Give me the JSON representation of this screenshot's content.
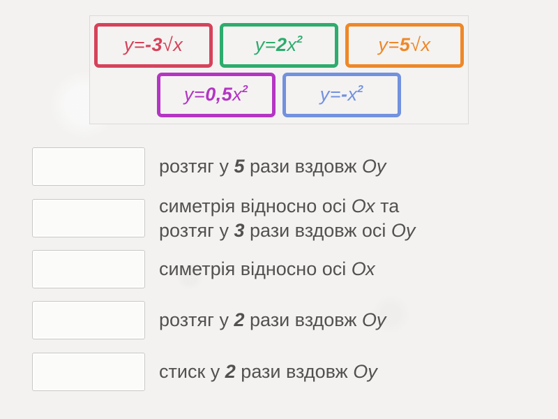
{
  "page": {
    "background": "#f3f2f1",
    "text_color": "#525150"
  },
  "tile_bank": {
    "tiles": [
      {
        "label": "y=-3√x",
        "pre": "y=",
        "coef": "-3",
        "rest": "√x",
        "sup": "",
        "color": "#d6425a"
      },
      {
        "label": "y=2x²",
        "pre": "y=",
        "coef": "2",
        "rest": "x",
        "sup": "2",
        "color": "#2dac6d"
      },
      {
        "label": "y=5√x",
        "pre": "y=",
        "coef": "5",
        "rest": "√x",
        "sup": "",
        "color": "#ee8828"
      },
      {
        "label": "y=0,5x²",
        "pre": "y=",
        "coef": "0,5",
        "rest": "x",
        "sup": "2",
        "color": "#b435c3"
      },
      {
        "label": "y=-x²",
        "pre": "y=",
        "coef": "-",
        "rest": "x",
        "sup": "2",
        "color": "#7291de"
      }
    ]
  },
  "match_rows": [
    {
      "text": "розтяг у 5 рази вздовж Оу",
      "lines": [
        [
          {
            "t": "розтяг у "
          },
          {
            "t": "5",
            "s": "b"
          },
          {
            "t": " рази вздовж "
          },
          {
            "t": "Оу",
            "s": "i"
          }
        ]
      ]
    },
    {
      "text": "симетрія відносно осі Ох та розтяг у 3 рази вздовж осі Оу",
      "lines": [
        [
          {
            "t": "симетрія відносно осі "
          },
          {
            "t": "Ох",
            "s": "i"
          },
          {
            "t": " та"
          }
        ],
        [
          {
            "t": "розтяг у "
          },
          {
            "t": "3",
            "s": "b"
          },
          {
            "t": " рази вздовж осі "
          },
          {
            "t": "Оу",
            "s": "i"
          }
        ]
      ]
    },
    {
      "text": "симетрія відносно осі Ох",
      "lines": [
        [
          {
            "t": "симетрія відносно осі "
          },
          {
            "t": "Ох",
            "s": "i"
          }
        ]
      ]
    },
    {
      "text": "розтяг у 2 рази вздовж Оу",
      "lines": [
        [
          {
            "t": "розтяг у "
          },
          {
            "t": "2",
            "s": "b"
          },
          {
            "t": " рази вздовж "
          },
          {
            "t": "Оу",
            "s": "i"
          }
        ]
      ]
    },
    {
      "text": "стиск у 2 рази вздовж Оу",
      "lines": [
        [
          {
            "t": "стиск у "
          },
          {
            "t": "2",
            "s": "b"
          },
          {
            "t": " рази вздовж "
          },
          {
            "t": "Оу",
            "s": "i"
          }
        ]
      ]
    }
  ]
}
